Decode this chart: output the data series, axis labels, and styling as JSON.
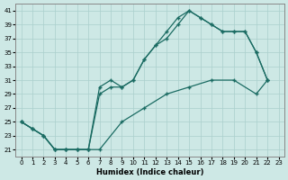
{
  "xlabel": "Humidex (Indice chaleur)",
  "bg_color": "#cde8e5",
  "grid_color": "#aacfcc",
  "line_color": "#1a6b62",
  "xmin": -0.5,
  "xmax": 23.5,
  "ymin": 20.0,
  "ymax": 42.0,
  "yticks": [
    21,
    23,
    25,
    27,
    29,
    31,
    33,
    35,
    37,
    39,
    41
  ],
  "xticks": [
    0,
    1,
    2,
    3,
    4,
    5,
    6,
    7,
    8,
    9,
    10,
    11,
    12,
    13,
    14,
    15,
    16,
    17,
    18,
    19,
    20,
    21,
    22,
    23
  ],
  "line1_x": [
    0,
    1,
    2,
    3,
    4,
    5,
    6,
    7,
    8,
    9,
    10,
    11,
    12,
    13,
    14,
    15,
    16,
    17,
    18,
    19,
    20,
    21,
    22
  ],
  "line1_y": [
    25,
    24,
    23,
    21,
    21,
    21,
    21,
    30,
    31,
    30,
    31,
    34,
    36,
    38,
    40,
    41,
    40,
    39,
    38,
    38,
    38,
    35,
    31
  ],
  "line2_x": [
    0,
    1,
    2,
    3,
    4,
    5,
    6,
    7,
    8,
    9,
    10,
    11,
    12,
    13,
    14,
    15,
    16,
    17,
    18,
    19,
    20,
    21,
    22
  ],
  "line2_y": [
    25,
    24,
    23,
    21,
    21,
    21,
    21,
    29,
    30,
    30,
    31,
    34,
    36,
    37,
    39,
    41,
    40,
    39,
    38,
    38,
    38,
    35,
    31
  ],
  "line3_x": [
    0,
    1,
    2,
    3,
    4,
    5,
    6,
    7,
    9,
    11,
    13,
    15,
    17,
    19,
    21,
    22
  ],
  "line3_y": [
    25,
    24,
    23,
    21,
    21,
    21,
    21,
    21,
    25,
    27,
    29,
    30,
    31,
    31,
    29,
    31
  ]
}
